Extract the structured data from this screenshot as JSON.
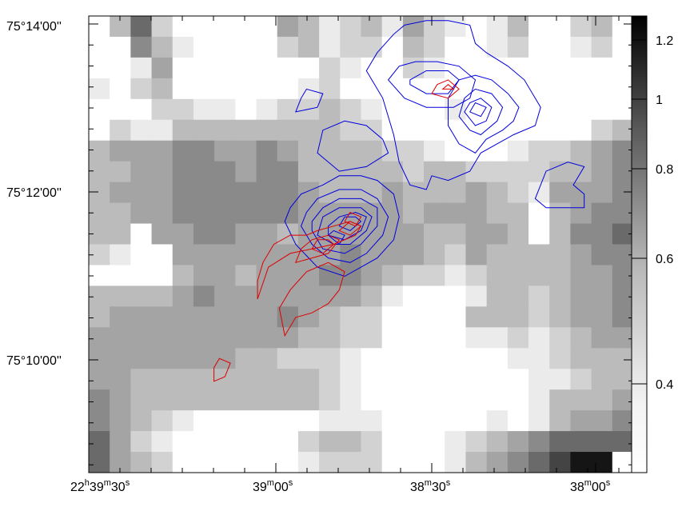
{
  "chart_data": {
    "type": "heatmap",
    "title": "",
    "xlabel": "",
    "ylabel": "",
    "x_ticks": [
      {
        "h": "22",
        "hs": "h",
        "m": "39",
        "ms": "m",
        "s": "30",
        "ss": "s"
      },
      {
        "h": "",
        "hs": "",
        "m": "39",
        "ms": "m",
        "s": "00",
        "ss": "s"
      },
      {
        "h": "",
        "hs": "",
        "m": "38",
        "ms": "m",
        "s": "30",
        "ss": "s"
      },
      {
        "h": "",
        "hs": "",
        "m": "38",
        "ms": "m",
        "s": "00",
        "ss": "s"
      }
    ],
    "y_ticks": [
      "75°14'00''",
      "75°12'00''",
      "75°10'00''"
    ],
    "colorbar": {
      "ticks": [
        "1.2",
        "1",
        "0.8",
        "0.6",
        "0.4"
      ],
      "range": [
        0.27,
        1.27
      ],
      "scale": "log",
      "colormap": "white-to-black grayscale"
    },
    "grid": {
      "cols": 26,
      "rows": 22
    },
    "grayscale_rows": [
      "0 3 6 2 0 0 0 0 0 4 3 1 2 3 1 4 2 1 0 1 3 0 0 2 3 0",
      "0 0 5 3 1 0 0 0 0 2 3 1 2 2 0 3 2 0 0 1 2 0 0 1 2 0",
      "0 0 1 4 0 0 0 0 0 0 0 2 1 0 0 2 1 0 0 0 0 0 0 0 0 0",
      "1 0 2 3 0 0 0 0 0 0 1 2 0 0 0 0 0 0 0 0 0 0 0 0 0 0",
      "0 0 0 2 2 1 1 0 1 2 2 3 2 1 0 0 0 1 0 0 0 0 0 0 0 0",
      "0 2 1 1 3 3 3 3 3 3 3 3 2 2 0 0 0 0 0 0 0 0 0 0 2 3",
      "3 4 4 4 5 5 4 4 5 4 3 3 3 3 2 2 1 0 0 0 1 2 2 3 4 5",
      "3 3 4 4 5 5 5 4 5 5 3 3 3 3 3 2 3 3 2 2 2 2 3 3 4 5",
      "3 4 4 4 5 5 5 5 5 5 4 3 3 3 4 3 3 3 4 3 2 1 4 4 4 5",
      "3 3 4 4 5 5 5 5 5 5 4 4 4 4 4 3 4 4 4 3 3 0 3 4 5 5",
      "3 3 0 4 4 5 5 4 4 3 4 4 4 4 4 4 3 3 4 4 3 0 3 5 5 6",
      "2 1 0 0 4 4 4 4 4 4 4 4 5 4 4 4 3 2 4 3 3 3 3 4 5 5",
      "0 0 0 0 3 4 4 3 4 4 4 5 5 4 3 2 2 1 2 3 3 3 3 4 4 5",
      "3 3 3 3 4 5 4 4 4 4 4 4 4 3 1 0 0 0 1 3 3 2 3 4 4 5",
      "3 4 4 4 4 4 4 4 4 5 4 3 2 2 0 0 0 0 3 3 3 2 3 4 4 5",
      "4 4 4 4 4 4 4 4 4 4 3 3 2 2 0 0 0 0 1 1 2 1 2 3 4 4",
      "4 4 4 4 4 4 4 3 3 2 2 2 1 0 0 0 0 0 0 0 1 1 2 3 3 3",
      "4 4 3 3 3 3 3 3 3 3 3 2 1 0 0 0 0 0 0 0 0 1 1 2 3 3",
      "5 4 3 3 3 3 3 3 3 3 3 2 1 0 0 0 0 0 0 0 0 1 3 3 3 4",
      "5 4 3 2 1 0 0 0 0 0 0 1 1 1 0 0 0 0 0 1 0 1 3 4 4 5",
      "6 4 2 1 0 0 0 0 0 0 2 3 3 2 0 0 0 1 2 3 4 5 6 6 6 6",
      "6 4 3 2 0 0 0 0 0 0 1 2 2 2 0 0 0 1 3 4 5 6 7 8 8 0"
    ],
    "gray_levels": [
      "#ffffff",
      "#ebebeb",
      "#d2d2d2",
      "#bbbbbb",
      "#a4a4a4",
      "#8a8a8a",
      "#6a6a6a",
      "#444444",
      "#151515"
    ],
    "series": [
      {
        "color": "#0000dd",
        "contours": [
          [
            [
              0.51,
              0.88
            ],
            [
              0.54,
              0.82
            ],
            [
              0.56,
              0.74
            ],
            [
              0.57,
              0.68
            ],
            [
              0.59,
              0.63
            ],
            [
              0.62,
              0.62
            ],
            [
              0.63,
              0.65
            ],
            [
              0.66,
              0.64
            ],
            [
              0.7,
              0.66
            ],
            [
              0.72,
              0.7
            ],
            [
              0.78,
              0.74
            ],
            [
              0.82,
              0.76
            ],
            [
              0.83,
              0.8
            ],
            [
              0.8,
              0.86
            ],
            [
              0.77,
              0.89
            ],
            [
              0.73,
              0.92
            ],
            [
              0.71,
              0.94
            ],
            [
              0.7,
              0.98
            ],
            [
              0.66,
              0.99
            ],
            [
              0.62,
              0.99
            ],
            [
              0.58,
              0.98
            ],
            [
              0.56,
              0.96
            ],
            [
              0.53,
              0.92
            ],
            [
              0.51,
              0.88
            ]
          ],
          [
            [
              0.82,
              0.6
            ],
            [
              0.84,
              0.58
            ],
            [
              0.91,
              0.58
            ],
            [
              0.91,
              0.61
            ],
            [
              0.89,
              0.63
            ],
            [
              0.91,
              0.67
            ],
            [
              0.88,
              0.68
            ],
            [
              0.84,
              0.66
            ],
            [
              0.82,
              0.6
            ]
          ],
          [
            [
              0.55,
              0.86
            ],
            [
              0.58,
              0.82
            ],
            [
              0.62,
              0.8
            ],
            [
              0.67,
              0.8
            ],
            [
              0.7,
              0.82
            ],
            [
              0.71,
              0.86
            ],
            [
              0.68,
              0.89
            ],
            [
              0.64,
              0.9
            ],
            [
              0.6,
              0.9
            ],
            [
              0.57,
              0.89
            ],
            [
              0.55,
              0.86
            ]
          ],
          [
            [
              0.59,
              0.85
            ],
            [
              0.62,
              0.83
            ],
            [
              0.66,
              0.83
            ],
            [
              0.68,
              0.86
            ],
            [
              0.66,
              0.88
            ],
            [
              0.62,
              0.88
            ],
            [
              0.59,
              0.86
            ],
            [
              0.59,
              0.85
            ]
          ],
          [
            [
              0.66,
              0.76
            ],
            [
              0.68,
              0.72
            ],
            [
              0.71,
              0.7
            ],
            [
              0.73,
              0.73
            ],
            [
              0.76,
              0.75
            ],
            [
              0.78,
              0.77
            ],
            [
              0.79,
              0.8
            ],
            [
              0.77,
              0.83
            ],
            [
              0.74,
              0.86
            ],
            [
              0.71,
              0.87
            ],
            [
              0.68,
              0.86
            ],
            [
              0.66,
              0.82
            ],
            [
              0.66,
              0.76
            ]
          ],
          [
            [
              0.68,
              0.78
            ],
            [
              0.7,
              0.75
            ],
            [
              0.72,
              0.74
            ],
            [
              0.75,
              0.77
            ],
            [
              0.76,
              0.8
            ],
            [
              0.74,
              0.83
            ],
            [
              0.71,
              0.84
            ],
            [
              0.69,
              0.82
            ],
            [
              0.68,
              0.78
            ]
          ],
          [
            [
              0.69,
              0.79
            ],
            [
              0.71,
              0.76
            ],
            [
              0.73,
              0.77
            ],
            [
              0.74,
              0.8
            ],
            [
              0.72,
              0.82
            ],
            [
              0.7,
              0.81
            ],
            [
              0.69,
              0.79
            ]
          ],
          [
            [
              0.7,
              0.79
            ],
            [
              0.72,
              0.78
            ],
            [
              0.73,
              0.8
            ],
            [
              0.71,
              0.81
            ],
            [
              0.7,
              0.79
            ]
          ],
          [
            [
              0.36,
              0.55
            ],
            [
              0.38,
              0.5
            ],
            [
              0.42,
              0.45
            ],
            [
              0.47,
              0.43
            ],
            [
              0.5,
              0.45
            ],
            [
              0.53,
              0.47
            ],
            [
              0.56,
              0.51
            ],
            [
              0.57,
              0.56
            ],
            [
              0.56,
              0.61
            ],
            [
              0.53,
              0.64
            ],
            [
              0.5,
              0.65
            ],
            [
              0.46,
              0.65
            ],
            [
              0.43,
              0.63
            ],
            [
              0.39,
              0.61
            ],
            [
              0.37,
              0.58
            ],
            [
              0.36,
              0.55
            ]
          ],
          [
            [
              0.39,
              0.54
            ],
            [
              0.41,
              0.5
            ],
            [
              0.44,
              0.47
            ],
            [
              0.48,
              0.46
            ],
            [
              0.51,
              0.48
            ],
            [
              0.54,
              0.52
            ],
            [
              0.55,
              0.56
            ],
            [
              0.53,
              0.6
            ],
            [
              0.5,
              0.62
            ],
            [
              0.46,
              0.62
            ],
            [
              0.42,
              0.6
            ],
            [
              0.4,
              0.57
            ],
            [
              0.39,
              0.54
            ]
          ],
          [
            [
              0.41,
              0.53
            ],
            [
              0.43,
              0.49
            ],
            [
              0.47,
              0.48
            ],
            [
              0.5,
              0.5
            ],
            [
              0.53,
              0.54
            ],
            [
              0.53,
              0.58
            ],
            [
              0.5,
              0.6
            ],
            [
              0.46,
              0.6
            ],
            [
              0.43,
              0.58
            ],
            [
              0.41,
              0.55
            ],
            [
              0.41,
              0.53
            ]
          ],
          [
            [
              0.42,
              0.52
            ],
            [
              0.45,
              0.5
            ],
            [
              0.48,
              0.5
            ],
            [
              0.51,
              0.53
            ],
            [
              0.52,
              0.56
            ],
            [
              0.5,
              0.58
            ],
            [
              0.46,
              0.58
            ],
            [
              0.43,
              0.56
            ],
            [
              0.42,
              0.52
            ]
          ],
          [
            [
              0.44,
              0.52
            ],
            [
              0.47,
              0.51
            ],
            [
              0.5,
              0.53
            ],
            [
              0.51,
              0.56
            ],
            [
              0.49,
              0.57
            ],
            [
              0.46,
              0.56
            ],
            [
              0.44,
              0.54
            ],
            [
              0.44,
              0.52
            ]
          ],
          [
            [
              0.46,
              0.54
            ],
            [
              0.48,
              0.53
            ],
            [
              0.5,
              0.55
            ],
            [
              0.49,
              0.56
            ],
            [
              0.47,
              0.56
            ],
            [
              0.46,
              0.54
            ]
          ],
          [
            [
              0.44,
              0.52
            ],
            [
              0.46,
              0.5
            ],
            [
              0.47,
              0.52
            ],
            [
              0.45,
              0.53
            ],
            [
              0.44,
              0.52
            ]
          ],
          [
            [
              0.38,
              0.79
            ],
            [
              0.42,
              0.8
            ],
            [
              0.43,
              0.83
            ],
            [
              0.4,
              0.84
            ],
            [
              0.39,
              0.82
            ],
            [
              0.38,
              0.79
            ]
          ],
          [
            [
              0.42,
              0.7
            ],
            [
              0.46,
              0.66
            ],
            [
              0.51,
              0.67
            ],
            [
              0.55,
              0.7
            ],
            [
              0.54,
              0.73
            ],
            [
              0.51,
              0.76
            ],
            [
              0.47,
              0.77
            ],
            [
              0.43,
              0.75
            ],
            [
              0.42,
              0.7
            ]
          ]
        ]
      },
      {
        "color": "#dd0000",
        "contours": [
          [
            [
              0.31,
              0.38
            ],
            [
              0.33,
              0.45
            ],
            [
              0.37,
              0.48
            ],
            [
              0.41,
              0.49
            ],
            [
              0.45,
              0.5
            ],
            [
              0.49,
              0.52
            ],
            [
              0.5,
              0.54
            ],
            [
              0.48,
              0.55
            ],
            [
              0.45,
              0.54
            ],
            [
              0.42,
              0.53
            ],
            [
              0.4,
              0.52
            ],
            [
              0.37,
              0.52
            ],
            [
              0.34,
              0.5
            ],
            [
              0.32,
              0.46
            ],
            [
              0.31,
              0.42
            ],
            [
              0.31,
              0.38
            ]
          ],
          [
            [
              0.36,
              0.3
            ],
            [
              0.38,
              0.34
            ],
            [
              0.41,
              0.35
            ],
            [
              0.44,
              0.37
            ],
            [
              0.46,
              0.4
            ],
            [
              0.47,
              0.44
            ],
            [
              0.44,
              0.46
            ],
            [
              0.4,
              0.44
            ],
            [
              0.37,
              0.4
            ],
            [
              0.35,
              0.36
            ],
            [
              0.36,
              0.3
            ]
          ],
          [
            [
              0.38,
              0.46
            ],
            [
              0.41,
              0.47
            ],
            [
              0.44,
              0.48
            ],
            [
              0.46,
              0.51
            ],
            [
              0.44,
              0.52
            ],
            [
              0.41,
              0.51
            ],
            [
              0.39,
              0.49
            ],
            [
              0.38,
              0.46
            ]
          ],
          [
            [
              0.41,
              0.49
            ],
            [
              0.43,
              0.48
            ],
            [
              0.45,
              0.5
            ],
            [
              0.44,
              0.51
            ],
            [
              0.42,
              0.51
            ],
            [
              0.41,
              0.49
            ]
          ],
          [
            [
              0.46,
              0.53
            ],
            [
              0.48,
              0.52
            ],
            [
              0.5,
              0.54
            ],
            [
              0.48,
              0.55
            ],
            [
              0.46,
              0.53
            ]
          ],
          [
            [
              0.47,
              0.55
            ],
            [
              0.49,
              0.54
            ],
            [
              0.5,
              0.56
            ],
            [
              0.48,
              0.57
            ],
            [
              0.47,
              0.55
            ]
          ],
          [
            [
              0.63,
              0.83
            ],
            [
              0.66,
              0.82
            ],
            [
              0.68,
              0.84
            ],
            [
              0.66,
              0.86
            ],
            [
              0.64,
              0.85
            ],
            [
              0.63,
              0.83
            ]
          ],
          [
            [
              0.65,
              0.84
            ],
            [
              0.67,
              0.84
            ],
            [
              0.66,
              0.85
            ],
            [
              0.65,
              0.84
            ]
          ],
          [
            [
              0.23,
              0.2
            ],
            [
              0.25,
              0.21
            ],
            [
              0.26,
              0.24
            ],
            [
              0.24,
              0.25
            ],
            [
              0.23,
              0.23
            ],
            [
              0.23,
              0.2
            ]
          ]
        ]
      }
    ]
  }
}
